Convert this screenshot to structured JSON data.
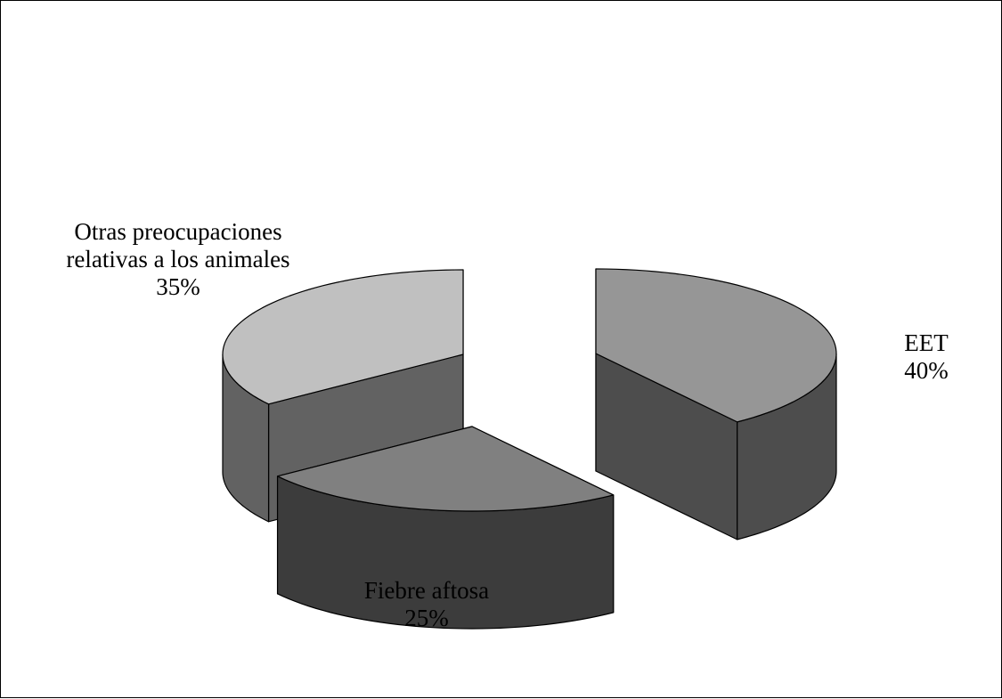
{
  "chart_data": {
    "type": "pie",
    "style": "3d-exploded",
    "legend": "none",
    "slices": [
      {
        "label": "EET",
        "value": 40,
        "value_label": "40%",
        "top_color": "#969696",
        "side_color": "#4d4d4d"
      },
      {
        "label": "Fiebre aftosa",
        "value": 25,
        "value_label": "25%",
        "top_color": "#808080",
        "side_color": "#3c3c3c"
      },
      {
        "label": "Otras preocupaciones relativas a los animales",
        "label_lines": [
          "Otras preocupaciones",
          "relativas a los animales"
        ],
        "value": 35,
        "value_label": "35%",
        "top_color": "#c0c0c0",
        "side_color": "#626262"
      }
    ]
  }
}
